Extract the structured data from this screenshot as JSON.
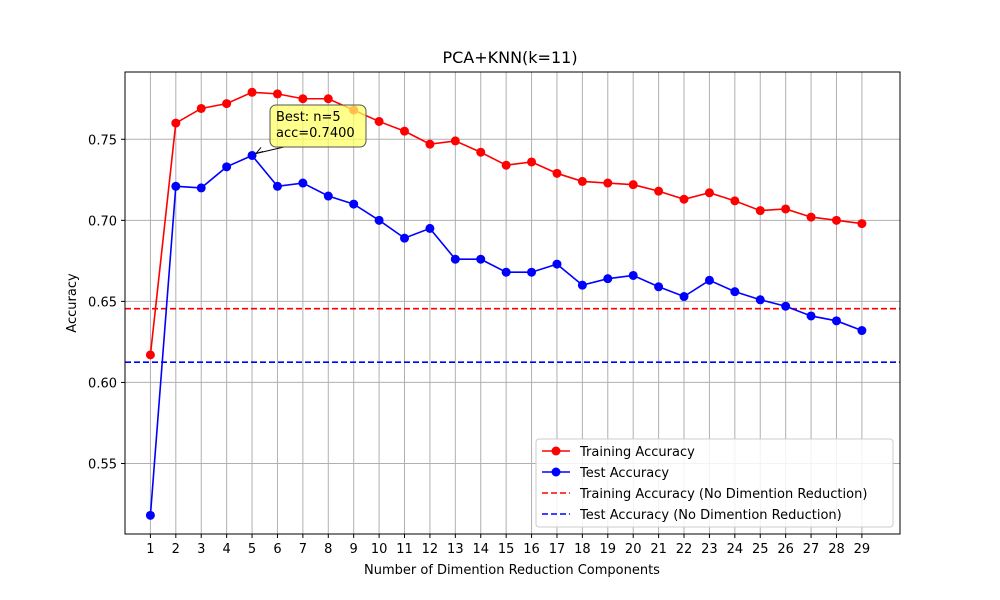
{
  "chart_data": {
    "type": "line",
    "title": "PCA+KNN(k=11)",
    "xlabel": "Number of Dimention Reduction Components",
    "ylabel": "Accuracy",
    "xlim": [
      0.0,
      30.5
    ],
    "ylim": [
      0.5065,
      0.7915
    ],
    "x": [
      1,
      2,
      3,
      4,
      5,
      6,
      7,
      8,
      9,
      10,
      11,
      12,
      13,
      14,
      15,
      16,
      17,
      18,
      19,
      20,
      21,
      22,
      23,
      24,
      25,
      26,
      27,
      28,
      29
    ],
    "x_ticks": [
      1,
      2,
      3,
      4,
      5,
      6,
      7,
      8,
      9,
      10,
      11,
      12,
      13,
      14,
      15,
      16,
      17,
      18,
      19,
      20,
      21,
      22,
      23,
      24,
      25,
      26,
      27,
      28,
      29
    ],
    "y_ticks": [
      0.55,
      0.6,
      0.65,
      0.7,
      0.75
    ],
    "y_tick_labels": [
      "0.55",
      "0.60",
      "0.65",
      "0.70",
      "0.75"
    ],
    "grid": true,
    "legend_position": "lower-right",
    "series": [
      {
        "name": "Training Accuracy",
        "color": "#ff0000",
        "style": "solid-marker",
        "values": [
          0.617,
          0.76,
          0.769,
          0.772,
          0.779,
          0.778,
          0.775,
          0.775,
          0.768,
          0.761,
          0.755,
          0.747,
          0.749,
          0.742,
          0.734,
          0.736,
          0.729,
          0.724,
          0.723,
          0.722,
          0.718,
          0.713,
          0.717,
          0.712,
          0.706,
          0.707,
          0.702,
          0.7,
          0.698
        ]
      },
      {
        "name": "Test Accuracy",
        "color": "#0000ff",
        "style": "solid-marker",
        "values": [
          0.518,
          0.721,
          0.72,
          0.733,
          0.74,
          0.721,
          0.723,
          0.715,
          0.71,
          0.7,
          0.689,
          0.695,
          0.676,
          0.676,
          0.668,
          0.668,
          0.673,
          0.66,
          0.664,
          0.666,
          0.659,
          0.653,
          0.663,
          0.656,
          0.651,
          0.647,
          0.641,
          0.638,
          0.632
        ]
      }
    ],
    "reference_lines": [
      {
        "name": "Training Accuracy (No Dimention Reduction)",
        "color": "#ff0000",
        "style": "dashed",
        "y": 0.6455
      },
      {
        "name": "Test Accuracy (No Dimention Reduction)",
        "color": "#0000ff",
        "style": "dashed",
        "y": 0.6125
      }
    ],
    "annotation": {
      "lines": [
        "Best: n=5",
        "acc=0.7400"
      ],
      "x": 5,
      "y": 0.74,
      "box_color": "#ffff66"
    }
  }
}
